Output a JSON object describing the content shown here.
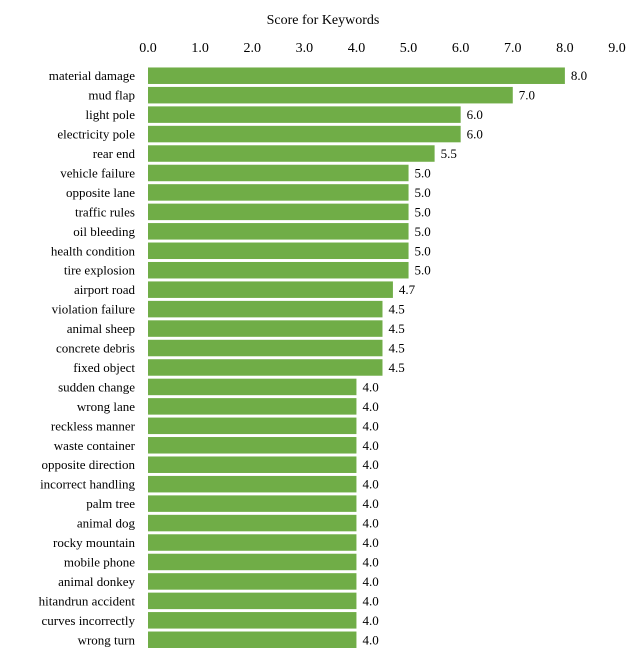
{
  "chart_data": {
    "type": "bar",
    "orientation": "horizontal",
    "title": "Score for Keywords",
    "xlabel": "",
    "ylabel": "",
    "xlim": [
      0,
      9
    ],
    "x_ticks": [
      "0.0",
      "1.0",
      "2.0",
      "3.0",
      "4.0",
      "5.0",
      "6.0",
      "7.0",
      "8.0",
      "9.0"
    ],
    "x_axis_position": "top",
    "grid": false,
    "bar_color": "#70AD47",
    "categories": [
      "material damage",
      "mud flap",
      "light pole",
      "electricity pole",
      "rear end",
      "vehicle failure",
      "opposite lane",
      "traffic rules",
      "oil bleeding",
      "health condition",
      "tire explosion",
      "airport road",
      "violation failure",
      "animal sheep",
      "concrete debris",
      "fixed object",
      "sudden change",
      "wrong lane",
      "reckless manner",
      "waste container",
      "opposite direction",
      "incorrect handling",
      "palm tree",
      "animal dog",
      "rocky mountain",
      "mobile phone",
      "animal donkey",
      "hitandrun accident",
      "curves incorrectly",
      "wrong turn"
    ],
    "values": [
      8.0,
      7.0,
      6.0,
      6.0,
      5.5,
      5.0,
      5.0,
      5.0,
      5.0,
      5.0,
      5.0,
      4.7,
      4.5,
      4.5,
      4.5,
      4.5,
      4.0,
      4.0,
      4.0,
      4.0,
      4.0,
      4.0,
      4.0,
      4.0,
      4.0,
      4.0,
      4.0,
      4.0,
      4.0,
      4.0
    ],
    "data_labels": [
      "8.0",
      "7.0",
      "6.0",
      "6.0",
      "5.5",
      "5.0",
      "5.0",
      "5.0",
      "5.0",
      "5.0",
      "5.0",
      "4.7",
      "4.5",
      "4.5",
      "4.5",
      "4.5",
      "4.0",
      "4.0",
      "4.0",
      "4.0",
      "4.0",
      "4.0",
      "4.0",
      "4.0",
      "4.0",
      "4.0",
      "4.0",
      "4.0",
      "4.0",
      "4.0"
    ]
  }
}
